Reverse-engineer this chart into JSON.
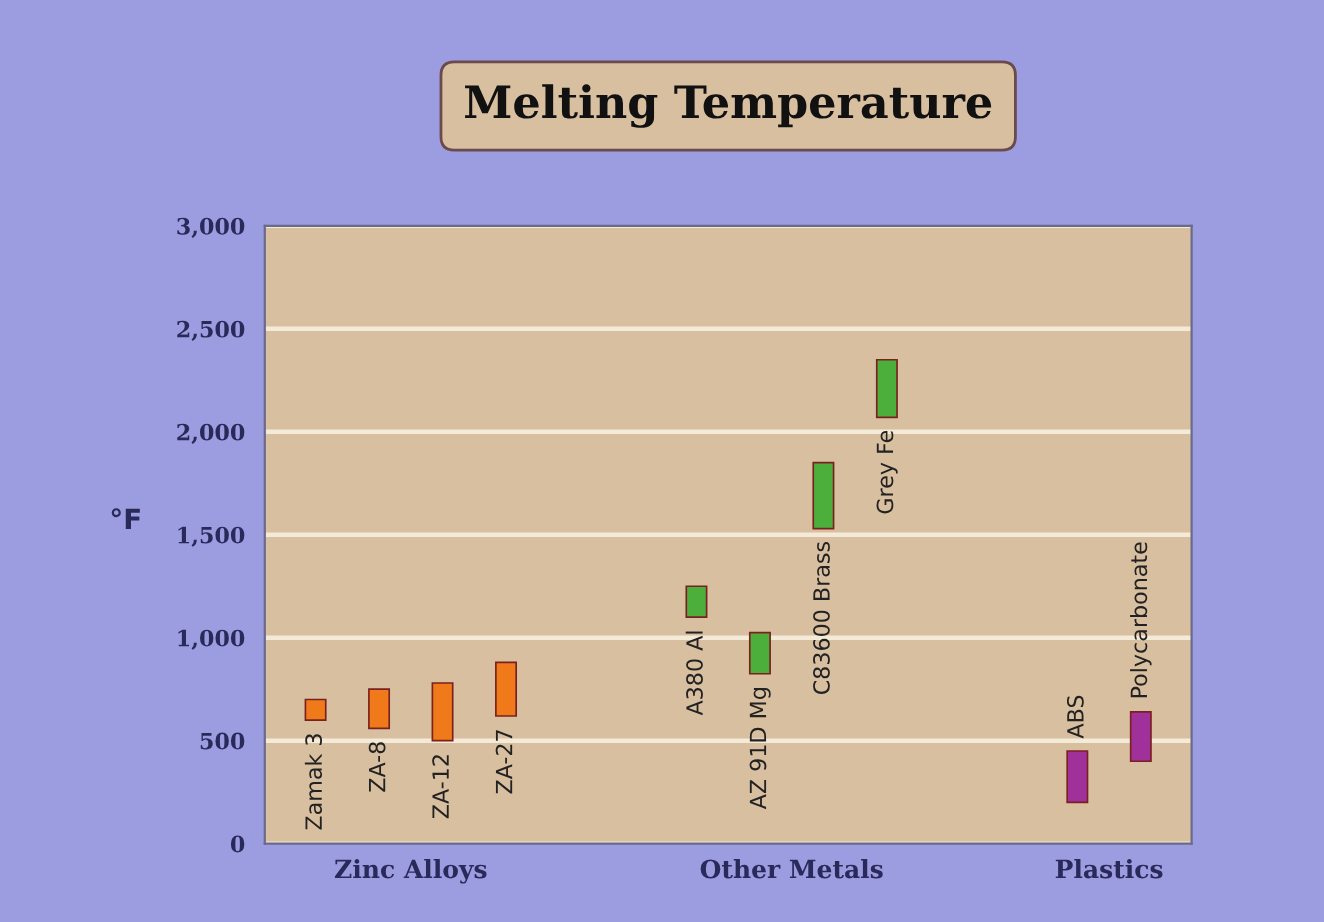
{
  "chart_data": {
    "type": "bar",
    "title": "Melting Temperature",
    "ylabel": "°F",
    "categories": [
      "Zamak 3",
      "ZA-8",
      "ZA-12",
      "ZA-27",
      null,
      null,
      "A380 Al",
      "AZ 91D Mg",
      "C83600 Brass",
      "Grey Fe",
      null,
      null,
      "ABS",
      "Polycarbonate"
    ],
    "base": [
      600,
      560,
      500,
      620,
      null,
      null,
      1100,
      825,
      1530,
      2070,
      null,
      null,
      200,
      400
    ],
    "values": [
      100,
      190,
      280,
      260,
      null,
      null,
      150,
      200,
      320,
      280,
      null,
      null,
      250,
      240
    ],
    "colors": [
      "#f07a1a",
      "#f07a1a",
      "#f07a1a",
      "#f07a1a",
      null,
      null,
      "#4caf3c",
      "#4caf3c",
      "#4caf3c",
      "#4caf3c",
      null,
      null,
      "#a0309a",
      "#a0309a"
    ],
    "annotations": [
      "Zinc Alloys",
      "Other Metals",
      "Plastics"
    ],
    "ylim": [
      0,
      3000
    ],
    "yticks": [
      {
        "value": 0,
        "label": "0"
      },
      {
        "value": 500,
        "label": "500"
      },
      {
        "value": 1000,
        "label": "1,000"
      },
      {
        "value": 1500,
        "label": "1,500"
      },
      {
        "value": 2000,
        "label": "2,000"
      },
      {
        "value": 2500,
        "label": "2,500"
      },
      {
        "value": 3000,
        "label": "3,000"
      }
    ],
    "grid": "y"
  }
}
